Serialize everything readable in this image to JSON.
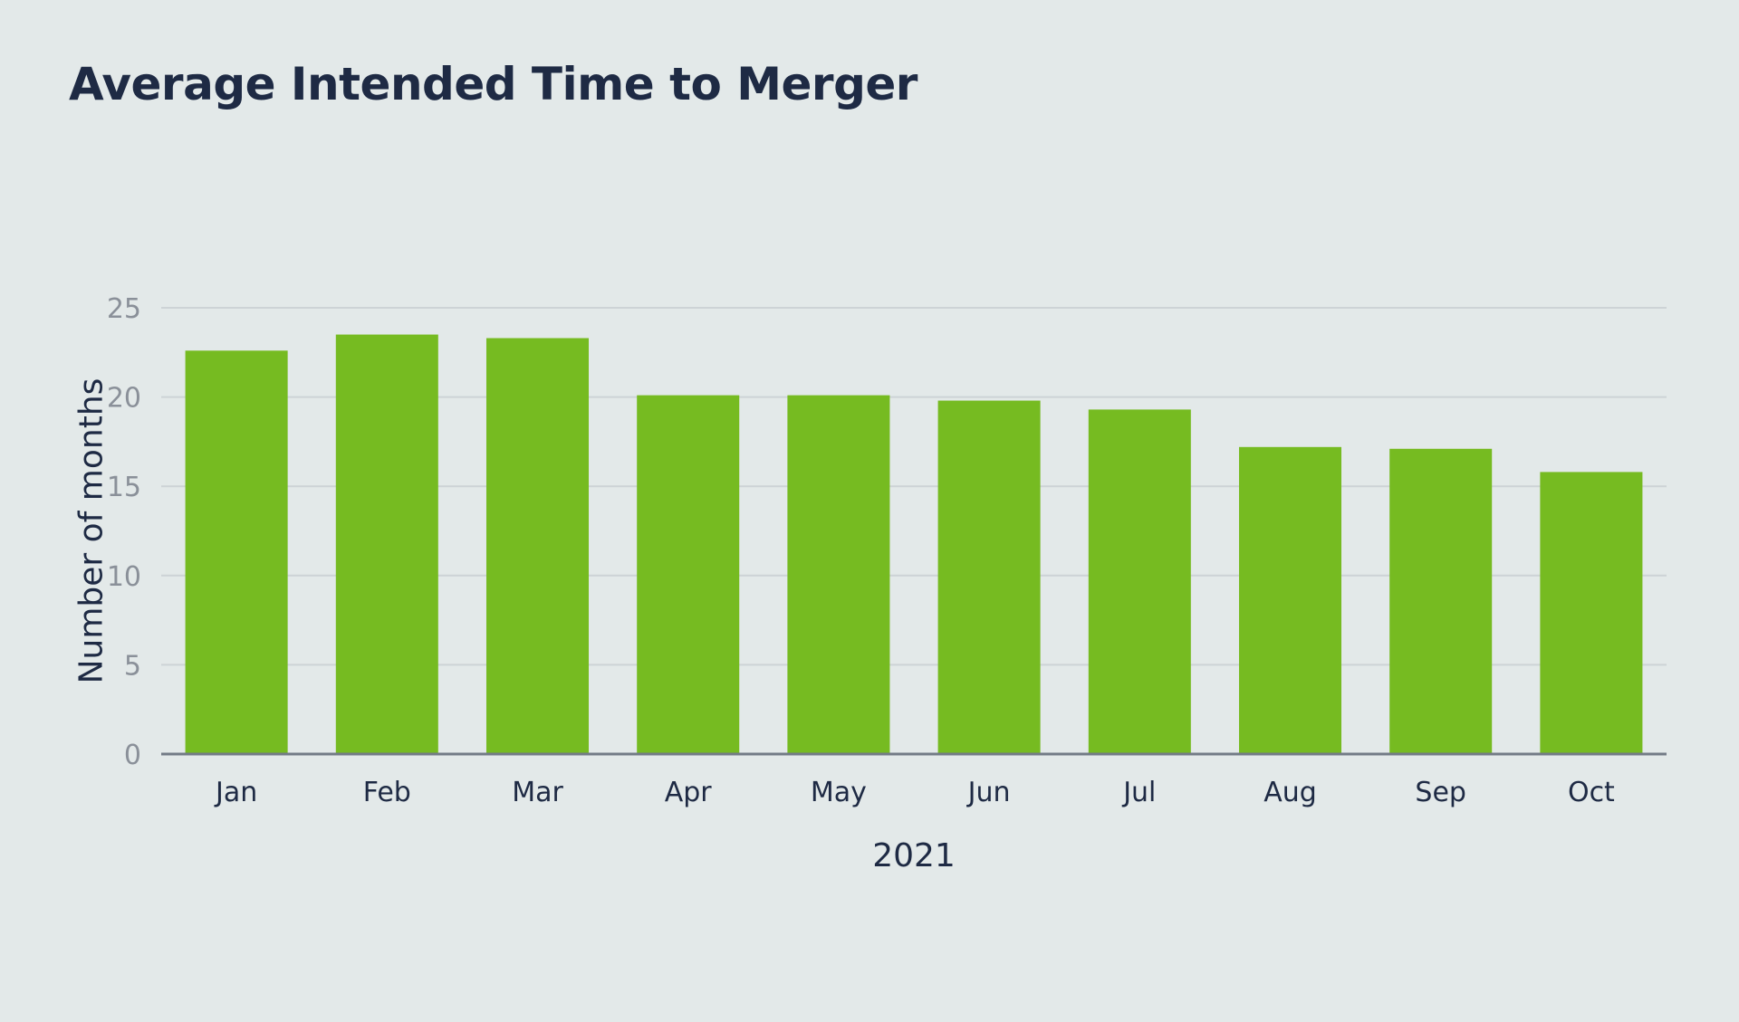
{
  "chart_data": {
    "type": "bar",
    "title": "Average Intended Time to Merger",
    "xlabel": "2021",
    "ylabel": "Number of months",
    "categories": [
      "Jan",
      "Feb",
      "Mar",
      "Apr",
      "May",
      "Jun",
      "Jul",
      "Aug",
      "Sep",
      "Oct"
    ],
    "values": [
      22.6,
      23.5,
      23.3,
      20.1,
      20.1,
      19.8,
      19.3,
      17.2,
      17.1,
      15.8
    ],
    "ylim": [
      0,
      25
    ],
    "yticks": [
      0,
      5,
      10,
      15,
      20,
      25
    ],
    "grid": true,
    "colors": {
      "bar": "#76bb21",
      "background": "#e3e9e9",
      "text": "#1e2a44"
    }
  }
}
